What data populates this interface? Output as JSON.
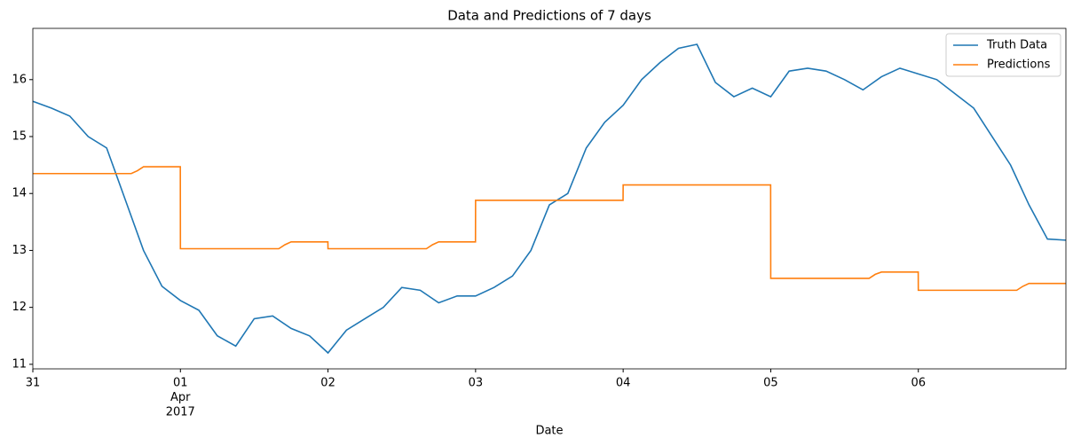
{
  "chart_data": {
    "type": "line",
    "title": "Data and Predictions of 7 days",
    "x_label": "Date",
    "xlim": [
      "2017-03-31 00:00",
      "2017-04-07 00:00"
    ],
    "xticks": [
      {
        "value": "2017-03-31 00:00",
        "label": [
          "31"
        ]
      },
      {
        "value": "2017-04-01 00:00",
        "label": [
          "01",
          "Apr",
          "2017"
        ]
      },
      {
        "value": "2017-04-02 00:00",
        "label": [
          "02"
        ]
      },
      {
        "value": "2017-04-03 00:00",
        "label": [
          "03"
        ]
      },
      {
        "value": "2017-04-04 00:00",
        "label": [
          "04"
        ]
      },
      {
        "value": "2017-04-05 00:00",
        "label": [
          "05"
        ]
      },
      {
        "value": "2017-04-06 00:00",
        "label": [
          "06"
        ]
      }
    ],
    "ylim": [
      10.92,
      16.9
    ],
    "yticks": [
      11,
      12,
      13,
      14,
      15,
      16
    ],
    "grid": false,
    "legend": "upper right",
    "series": [
      {
        "name": "Truth Data",
        "color": "#1f77b4",
        "x": [
          "2017-03-31 00:00",
          "2017-03-31 03:00",
          "2017-03-31 06:00",
          "2017-03-31 09:00",
          "2017-03-31 12:00",
          "2017-03-31 15:00",
          "2017-03-31 18:00",
          "2017-03-31 21:00",
          "2017-04-01 00:00",
          "2017-04-01 03:00",
          "2017-04-01 06:00",
          "2017-04-01 09:00",
          "2017-04-01 12:00",
          "2017-04-01 15:00",
          "2017-04-01 18:00",
          "2017-04-01 21:00",
          "2017-04-02 00:00",
          "2017-04-02 03:00",
          "2017-04-02 06:00",
          "2017-04-02 09:00",
          "2017-04-02 12:00",
          "2017-04-02 15:00",
          "2017-04-02 18:00",
          "2017-04-02 21:00",
          "2017-04-03 00:00",
          "2017-04-03 03:00",
          "2017-04-03 06:00",
          "2017-04-03 09:00",
          "2017-04-03 12:00",
          "2017-04-03 15:00",
          "2017-04-03 18:00",
          "2017-04-03 21:00",
          "2017-04-04 00:00",
          "2017-04-04 03:00",
          "2017-04-04 06:00",
          "2017-04-04 09:00",
          "2017-04-04 12:00",
          "2017-04-04 15:00",
          "2017-04-04 18:00",
          "2017-04-04 21:00",
          "2017-04-05 00:00",
          "2017-04-05 03:00",
          "2017-04-05 06:00",
          "2017-04-05 09:00",
          "2017-04-05 12:00",
          "2017-04-05 15:00",
          "2017-04-05 18:00",
          "2017-04-05 21:00",
          "2017-04-06 00:00",
          "2017-04-06 03:00",
          "2017-04-06 06:00",
          "2017-04-06 09:00",
          "2017-04-06 12:00",
          "2017-04-06 15:00",
          "2017-04-06 18:00",
          "2017-04-06 21:00",
          "2017-04-07 00:00"
        ],
        "values": [
          15.62,
          15.5,
          15.36,
          15.0,
          14.8,
          13.9,
          13.0,
          12.37,
          12.12,
          11.95,
          11.5,
          11.32,
          11.8,
          11.85,
          11.63,
          11.5,
          11.2,
          11.6,
          11.8,
          12.0,
          12.35,
          12.3,
          12.08,
          12.2,
          12.2,
          12.35,
          12.55,
          13.0,
          13.8,
          14.0,
          14.8,
          15.25,
          15.55,
          16.0,
          16.3,
          16.55,
          16.62,
          15.95,
          15.7,
          15.85,
          15.7,
          16.15,
          16.2,
          16.15,
          16.0,
          15.82,
          16.05,
          16.2,
          16.1,
          16.0,
          15.75,
          15.5,
          15.0,
          14.5,
          13.8,
          13.2,
          13.18
        ]
      },
      {
        "name": "Predictions",
        "color": "#ff7f0e",
        "x": [
          "2017-03-31 00:00",
          "2017-03-31 16:00",
          "2017-03-31 17:00",
          "2017-03-31 18:00",
          "2017-03-31 23:59",
          "2017-04-01 00:00",
          "2017-04-01 16:00",
          "2017-04-01 17:00",
          "2017-04-01 18:00",
          "2017-04-01 23:59",
          "2017-04-02 00:00",
          "2017-04-02 16:00",
          "2017-04-02 17:00",
          "2017-04-02 18:00",
          "2017-04-02 23:59",
          "2017-04-03 00:00",
          "2017-04-03 23:59",
          "2017-04-04 00:00",
          "2017-04-04 23:59",
          "2017-04-05 00:00",
          "2017-04-05 16:00",
          "2017-04-05 17:00",
          "2017-04-05 18:00",
          "2017-04-05 23:59",
          "2017-04-06 00:00",
          "2017-04-06 16:00",
          "2017-04-06 17:00",
          "2017-04-06 18:00",
          "2017-04-07 00:00"
        ],
        "values": [
          14.35,
          14.35,
          14.4,
          14.47,
          14.47,
          13.03,
          13.03,
          13.1,
          13.15,
          13.15,
          13.03,
          13.03,
          13.1,
          13.15,
          13.15,
          13.88,
          13.88,
          14.15,
          14.15,
          12.51,
          12.51,
          12.58,
          12.62,
          12.62,
          12.3,
          12.3,
          12.37,
          12.42,
          12.42
        ]
      }
    ]
  }
}
